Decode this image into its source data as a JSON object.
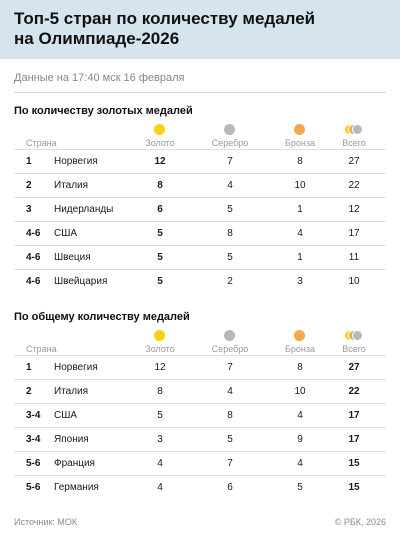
{
  "title": "Топ-5 стран по количеству медалей\nна Олимпиаде-2026",
  "subtitle": "Данные на 17:40 мск 16 февраля",
  "columns": {
    "country": "Страна",
    "gold": "Золото",
    "silver": "Серебро",
    "bronze": "Бронза",
    "total": "Всего"
  },
  "colors": {
    "gold": "#f5d312",
    "silver": "#b8b8b8",
    "bronze": "#f1a94a",
    "header_bg": "#d6e4ee"
  },
  "table_gold": {
    "title": "По количеству золотых медалей",
    "rows": [
      {
        "rank": "1",
        "country": "Норвегия",
        "gold": "12",
        "silver": "7",
        "bronze": "8",
        "total": "27"
      },
      {
        "rank": "2",
        "country": "Италия",
        "gold": "8",
        "silver": "4",
        "bronze": "10",
        "total": "22"
      },
      {
        "rank": "3",
        "country": "Нидерланды",
        "gold": "6",
        "silver": "5",
        "bronze": "1",
        "total": "12"
      },
      {
        "rank": "4-6",
        "country": "США",
        "gold": "5",
        "silver": "8",
        "bronze": "4",
        "total": "17"
      },
      {
        "rank": "4-6",
        "country": "Швеция",
        "gold": "5",
        "silver": "5",
        "bronze": "1",
        "total": "11"
      },
      {
        "rank": "4-6",
        "country": "Швейцария",
        "gold": "5",
        "silver": "2",
        "bronze": "3",
        "total": "10"
      }
    ]
  },
  "table_total": {
    "title": "По общему количеству медалей",
    "rows": [
      {
        "rank": "1",
        "country": "Норвегия",
        "gold": "12",
        "silver": "7",
        "bronze": "8",
        "total": "27"
      },
      {
        "rank": "2",
        "country": "Италия",
        "gold": "8",
        "silver": "4",
        "bronze": "10",
        "total": "22"
      },
      {
        "rank": "3-4",
        "country": "США",
        "gold": "5",
        "silver": "8",
        "bronze": "4",
        "total": "17"
      },
      {
        "rank": "3-4",
        "country": "Япония",
        "gold": "3",
        "silver": "5",
        "bronze": "9",
        "total": "17"
      },
      {
        "rank": "5-6",
        "country": "Франция",
        "gold": "4",
        "silver": "7",
        "bronze": "4",
        "total": "15"
      },
      {
        "rank": "5-6",
        "country": "Германия",
        "gold": "4",
        "silver": "6",
        "bronze": "5",
        "total": "15"
      }
    ]
  },
  "footer": {
    "source": "Источник: МОК",
    "copyright": "© РБК, 2026"
  }
}
